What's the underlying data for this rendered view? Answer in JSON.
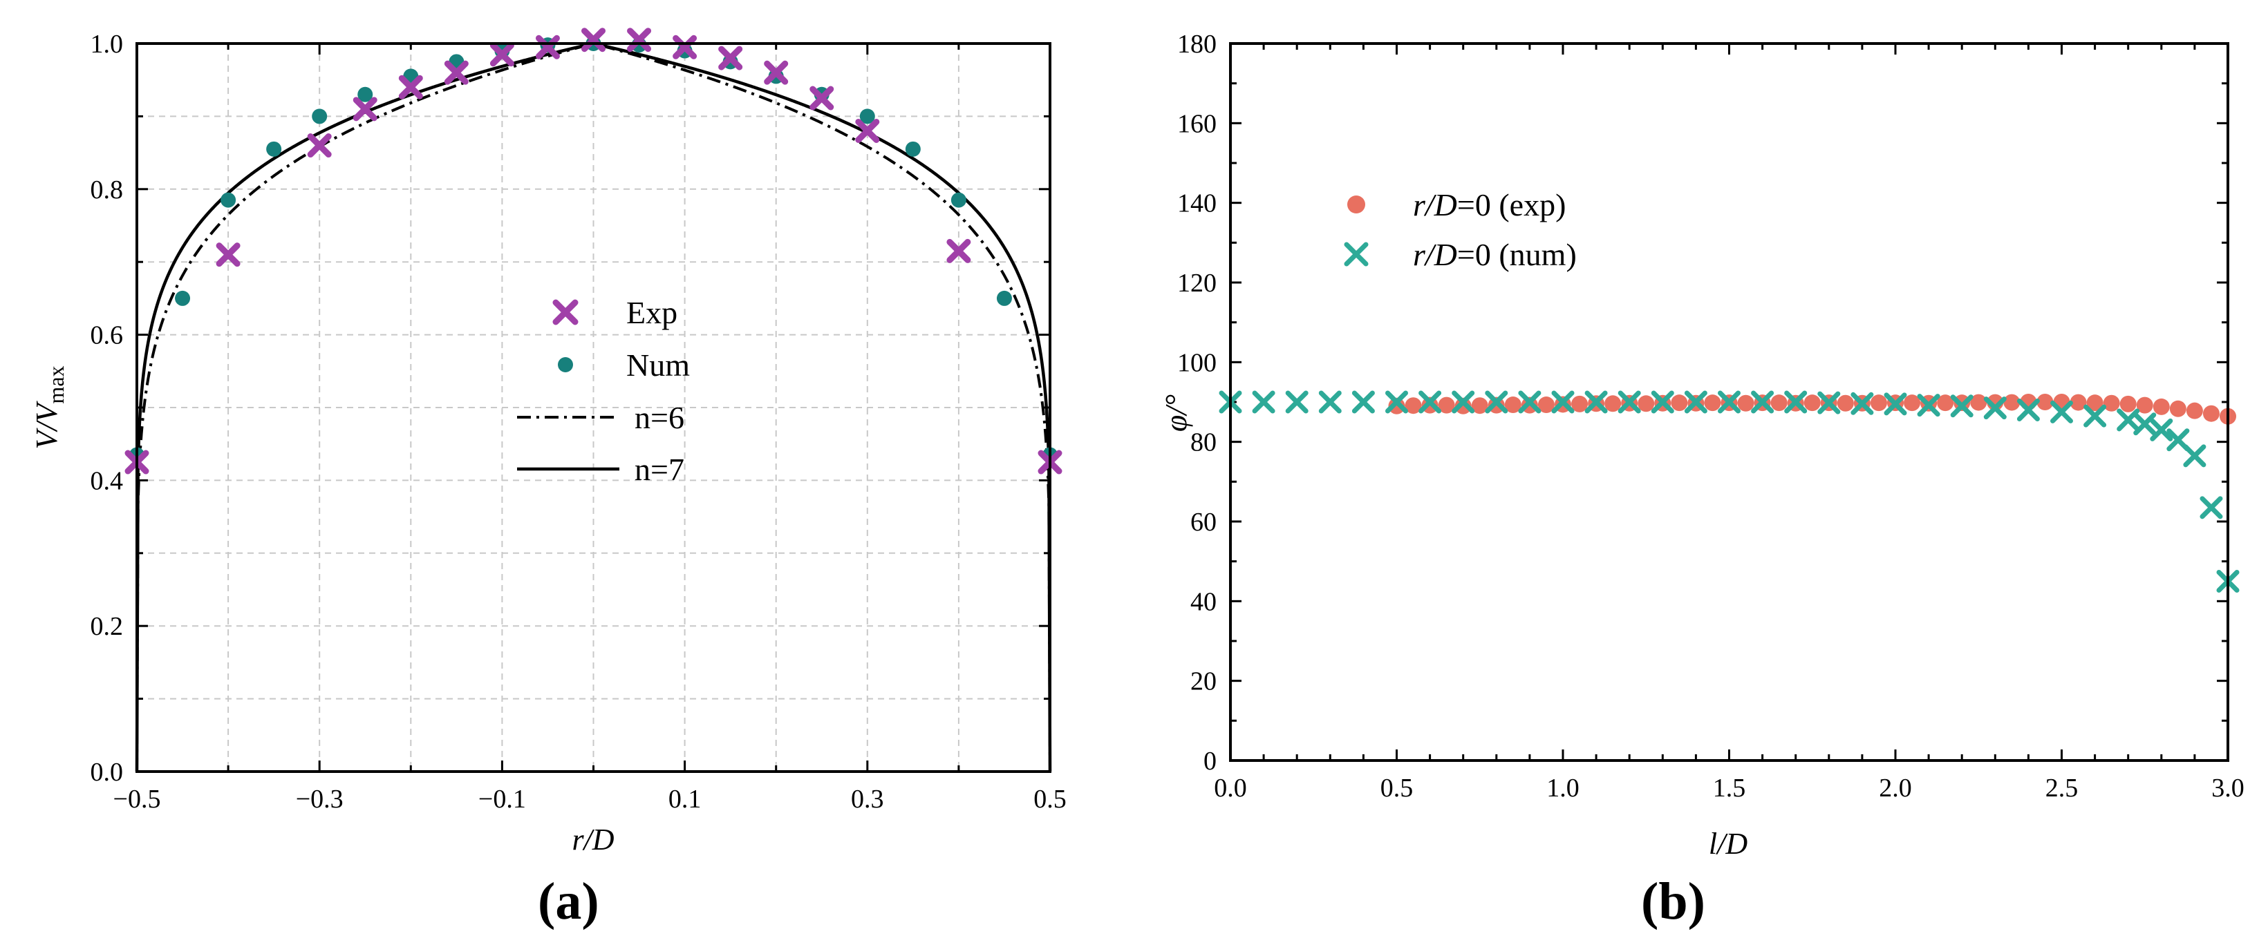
{
  "panels": [
    {
      "id": "a",
      "panel_label": "a",
      "chart_data": {
        "type": "scatter",
        "title": "",
        "xlabel": "r/D",
        "ylabel": "V/V",
        "ylabel_sub": "max",
        "xlim": [
          -0.5,
          0.5
        ],
        "ylim": [
          0.0,
          1.0
        ],
        "x_major_ticks": [
          -0.5,
          -0.3,
          -0.1,
          0.1,
          0.3,
          0.5
        ],
        "x_tick_labels": [
          "−0.5",
          "−0.3",
          "−0.1",
          "0.1",
          "0.3",
          "0.5"
        ],
        "y_major_ticks": [
          0.0,
          0.2,
          0.4,
          0.6,
          0.8,
          1.0
        ],
        "y_tick_labels": [
          "0.0",
          "0.2",
          "0.4",
          "0.6",
          "0.8",
          "1.0"
        ],
        "grid": true,
        "legend_position": "center",
        "series": [
          {
            "name": "Exp",
            "kind": "marker-x",
            "color": "#a040a8",
            "x": [
              -0.5,
              -0.4,
              -0.3,
              -0.25,
              -0.2,
              -0.15,
              -0.1,
              -0.05,
              0.0,
              0.05,
              0.1,
              0.15,
              0.2,
              0.25,
              0.3,
              0.4,
              0.5
            ],
            "y": [
              0.425,
              0.71,
              0.86,
              0.91,
              0.94,
              0.96,
              0.985,
              0.995,
              1.005,
              1.005,
              0.995,
              0.98,
              0.96,
              0.925,
              0.88,
              0.715,
              0.425
            ]
          },
          {
            "name": "Num",
            "kind": "marker-dot",
            "color": "#17807c",
            "x": [
              -0.5,
              -0.45,
              -0.4,
              -0.35,
              -0.3,
              -0.25,
              -0.2,
              -0.15,
              -0.1,
              -0.05,
              0.0,
              0.05,
              0.1,
              0.15,
              0.2,
              0.25,
              0.3,
              0.35,
              0.4,
              0.45,
              0.5
            ],
            "y": [
              0.435,
              0.65,
              0.785,
              0.855,
              0.9,
              0.93,
              0.955,
              0.975,
              0.99,
              0.998,
              1.0,
              0.998,
              0.99,
              0.975,
              0.955,
              0.93,
              0.9,
              0.855,
              0.785,
              0.65,
              0.435
            ]
          },
          {
            "name": "n=6",
            "kind": "line-dashdot",
            "color": "#000000",
            "power_law_exponent": 6
          },
          {
            "name": "n=7",
            "kind": "line-solid",
            "color": "#000000",
            "power_law_exponent": 7
          }
        ]
      }
    },
    {
      "id": "b",
      "panel_label": "b",
      "chart_data": {
        "type": "scatter",
        "title": "",
        "xlabel": "l/D",
        "ylabel": "φ/°",
        "xlim": [
          0.0,
          3.0
        ],
        "ylim": [
          0,
          180
        ],
        "x_major_ticks": [
          0.0,
          0.5,
          1.0,
          1.5,
          2.0,
          2.5,
          3.0
        ],
        "x_tick_labels": [
          "0.0",
          "0.5",
          "1.0",
          "1.5",
          "2.0",
          "2.5",
          "3.0"
        ],
        "y_major_ticks": [
          0,
          20,
          40,
          60,
          80,
          100,
          120,
          140,
          160,
          180
        ],
        "y_tick_labels": [
          "0",
          "20",
          "40",
          "60",
          "80",
          "100",
          "120",
          "140",
          "160",
          "180"
        ],
        "grid": false,
        "legend_position": "upper-left",
        "series": [
          {
            "name": "r/D=0 (exp)",
            "name_italic": "r/D",
            "name_rest": "=0 (exp)",
            "kind": "marker-dot",
            "color": "#e87060",
            "x": [
              0.5,
              0.55,
              0.6,
              0.65,
              0.7,
              0.75,
              0.8,
              0.85,
              0.9,
              0.95,
              1.0,
              1.05,
              1.1,
              1.15,
              1.2,
              1.25,
              1.3,
              1.35,
              1.4,
              1.45,
              1.5,
              1.55,
              1.6,
              1.65,
              1.7,
              1.75,
              1.8,
              1.85,
              1.9,
              1.95,
              2.0,
              2.05,
              2.1,
              2.15,
              2.2,
              2.25,
              2.3,
              2.35,
              2.4,
              2.45,
              2.5,
              2.55,
              2.6,
              2.65,
              2.7,
              2.75,
              2.8,
              2.85,
              2.9,
              2.95,
              3.0
            ],
            "y": [
              89.0,
              89.1,
              89.2,
              89.2,
              89.0,
              89.1,
              89.2,
              89.3,
              89.2,
              89.3,
              89.4,
              89.5,
              89.6,
              89.6,
              89.7,
              89.6,
              89.7,
              89.8,
              89.7,
              89.8,
              89.8,
              89.7,
              89.8,
              89.8,
              89.7,
              89.8,
              89.8,
              89.7,
              89.7,
              89.8,
              89.8,
              89.8,
              89.7,
              89.8,
              89.8,
              89.9,
              89.9,
              89.9,
              90.0,
              90.0,
              90.0,
              89.9,
              89.8,
              89.7,
              89.5,
              89.2,
              88.8,
              88.3,
              87.8,
              87.1,
              86.4
            ]
          },
          {
            "name": "r/D=0 (num)",
            "name_italic": "r/D",
            "name_rest": "=0 (num)",
            "kind": "marker-x",
            "color": "#2eaa98",
            "x": [
              0.0,
              0.1,
              0.2,
              0.3,
              0.4,
              0.5,
              0.6,
              0.7,
              0.8,
              0.9,
              1.0,
              1.1,
              1.2,
              1.3,
              1.4,
              1.5,
              1.6,
              1.7,
              1.8,
              1.9,
              2.0,
              2.1,
              2.2,
              2.3,
              2.4,
              2.5,
              2.6,
              2.7,
              2.75,
              2.8,
              2.85,
              2.9,
              2.95,
              3.0
            ],
            "y": [
              90.0,
              90.0,
              90.0,
              90.0,
              90.0,
              90.0,
              90.0,
              90.0,
              90.0,
              90.0,
              90.0,
              90.0,
              90.0,
              90.0,
              90.0,
              90.0,
              90.0,
              90.0,
              89.8,
              89.6,
              89.5,
              89.2,
              89.0,
              88.5,
              88.0,
              87.5,
              86.5,
              85.5,
              84.5,
              83.0,
              80.5,
              76.5,
              63.5,
              45.0
            ]
          }
        ]
      }
    }
  ]
}
